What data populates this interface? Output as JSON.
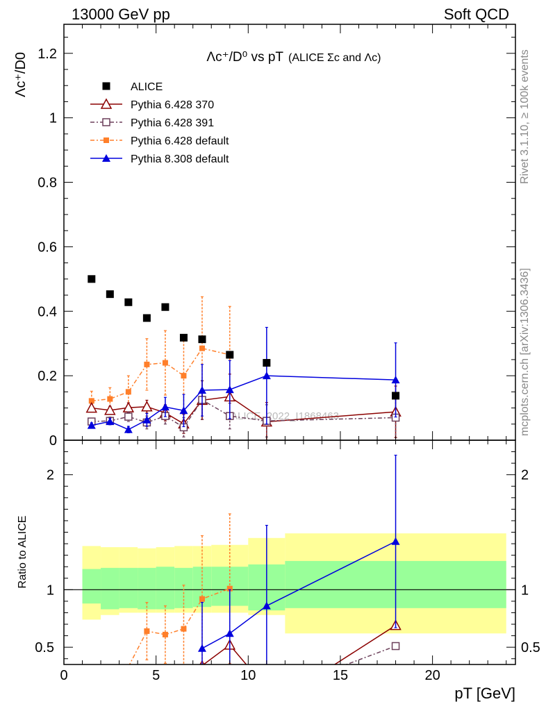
{
  "header": {
    "left": "13000 GeV pp",
    "right": "Soft QCD"
  },
  "side_text": {
    "top": "Rivet 3.1.10, ≥ 100k events",
    "bottom": "mcplots.cern.ch [arXiv:1306.3436]"
  },
  "chart_data": [
    {
      "type": "scatter",
      "title": {
        "main": "Λc⁺/D⁰ vs pT",
        "sub": "(ALICE Σc and Λc)"
      },
      "ylabel": "Λc⁺/D0",
      "xlim": [
        0,
        24.5
      ],
      "ylim": [
        0,
        1.29
      ],
      "yticks": [
        "0",
        "0.2",
        "0.4",
        "0.6",
        "0.8",
        "1",
        "1.2"
      ],
      "watermark": "ALICE_2022_I1868463",
      "legend_position": "top-left",
      "series": [
        {
          "name": "ALICE",
          "color": "#000000",
          "marker": "square-filled",
          "line": "none",
          "x": [
            1.5,
            2.5,
            3.5,
            4.5,
            5.5,
            6.5,
            7.5,
            9.0,
            11.0,
            18.0
          ],
          "y": [
            0.5,
            0.453,
            0.428,
            0.379,
            0.413,
            0.318,
            0.313,
            0.265,
            0.24,
            0.138
          ]
        },
        {
          "name": "Pythia 6.428 370",
          "color": "#8b0000",
          "marker": "triangle-open",
          "line": "solid",
          "x": [
            1.5,
            2.5,
            3.5,
            4.5,
            5.5,
            6.5,
            7.5,
            9.0,
            11.0,
            18.0
          ],
          "y": [
            0.1,
            0.093,
            0.101,
            0.104,
            0.085,
            0.051,
            0.124,
            0.135,
            0.057,
            0.088
          ],
          "err": [
            0.012,
            0.012,
            0.015,
            0.02,
            0.025,
            0.03,
            0.06,
            0.07,
            0.06,
            0.08
          ]
        },
        {
          "name": "Pythia 6.428 391",
          "color": "#6b3f5a",
          "marker": "square-open",
          "line": "dashdot",
          "x": [
            1.5,
            2.5,
            3.5,
            4.5,
            5.5,
            6.5,
            7.5,
            9.0,
            11.0,
            18.0
          ],
          "y": [
            0.058,
            0.06,
            0.073,
            0.055,
            0.075,
            0.04,
            0.125,
            0.075,
            0.06,
            0.07
          ],
          "err": [
            0.01,
            0.012,
            0.015,
            0.02,
            0.025,
            0.03,
            0.06,
            0.04,
            0.05,
            0.07
          ]
        },
        {
          "name": "Pythia 6.428 default",
          "color": "#ff7f2a",
          "marker": "square-filled-small",
          "line": "dashdot",
          "x": [
            1.5,
            2.5,
            3.5,
            4.5,
            5.5,
            6.5,
            7.5,
            9.0
          ],
          "y": [
            0.122,
            0.128,
            0.15,
            0.235,
            0.24,
            0.2,
            0.285,
            0.265
          ],
          "err": [
            0.03,
            0.035,
            0.05,
            0.08,
            0.1,
            0.12,
            0.16,
            0.15
          ]
        },
        {
          "name": "Pythia 8.308 default",
          "color": "#0000dd",
          "marker": "triangle-filled",
          "line": "solid",
          "x": [
            1.5,
            2.5,
            3.5,
            4.5,
            5.5,
            6.5,
            7.5,
            9.0,
            11.0,
            18.0
          ],
          "y": [
            0.046,
            0.058,
            0.033,
            0.063,
            0.103,
            0.092,
            0.155,
            0.157,
            0.2,
            0.187
          ],
          "err": [
            0.008,
            0.01,
            0.01,
            0.02,
            0.03,
            0.05,
            0.08,
            0.09,
            0.15,
            0.115
          ]
        }
      ]
    },
    {
      "type": "scatter",
      "ylabel": "Ratio to ALICE",
      "xlabel": "pT [GeV]",
      "xlim": [
        0,
        24.5
      ],
      "ylim": [
        0.35,
        2.3
      ],
      "xticks": [
        "0",
        "5",
        "10",
        "15",
        "20"
      ],
      "yticks": [
        "0.5",
        "1",
        "2"
      ],
      "bands": {
        "edges": [
          1,
          2,
          3,
          4,
          5,
          6,
          7,
          8,
          10,
          12,
          24
        ],
        "inner_low": [
          0.88,
          0.83,
          0.84,
          0.83,
          0.83,
          0.84,
          0.85,
          0.86,
          0.82,
          0.84
        ],
        "inner_high": [
          1.18,
          1.19,
          1.19,
          1.19,
          1.2,
          1.19,
          1.2,
          1.2,
          1.22,
          1.25
        ],
        "outer_low": [
          0.74,
          0.78,
          0.8,
          0.8,
          0.8,
          0.8,
          0.8,
          0.8,
          0.78,
          0.62
        ],
        "outer_high": [
          1.38,
          1.37,
          1.37,
          1.36,
          1.37,
          1.38,
          1.38,
          1.39,
          1.45,
          1.49
        ],
        "inner_color": "#99ff99",
        "outer_color": "#ffff99"
      },
      "series": [
        {
          "name": "Pythia 6.428 370",
          "color": "#8b0000",
          "marker": "triangle-open",
          "line": "solid",
          "x": [
            7.5,
            9.0,
            10.0,
            14.5,
            18.0
          ],
          "y": [
            0.34,
            0.52,
            0.33,
            0.33,
            0.69
          ],
          "markers_at": [
            true,
            true,
            false,
            false,
            true
          ]
        },
        {
          "name": "Pythia 6.428 391",
          "color": "#6b3f5a",
          "marker": "square-open",
          "line": "dashdot",
          "x": [
            15.0,
            18.0
          ],
          "y": [
            0.33,
            0.51
          ],
          "markers_at": [
            false,
            true
          ]
        },
        {
          "name": "Pythia 6.428 default",
          "color": "#ff7f2a",
          "marker": "square-filled-small",
          "line": "dashdot",
          "x": [
            3.5,
            4.5,
            5.5,
            6.5,
            7.5,
            9.0
          ],
          "y": [
            0.33,
            0.64,
            0.61,
            0.66,
            0.92,
            1.01
          ],
          "markers_at": [
            false,
            true,
            true,
            true,
            true,
            true
          ],
          "err": [
            0,
            0.25,
            0.25,
            0.38,
            0.55,
            0.65
          ]
        },
        {
          "name": "Pythia 8.308 default",
          "color": "#0000dd",
          "marker": "triangle-filled",
          "line": "solid",
          "x": [
            7.5,
            9.0,
            11.0,
            18.0
          ],
          "y": [
            0.49,
            0.62,
            0.86,
            1.42
          ],
          "markers_at": [
            true,
            true,
            true,
            true
          ],
          "err": [
            0.4,
            0.38,
            0.7,
            0.75
          ]
        }
      ]
    }
  ]
}
